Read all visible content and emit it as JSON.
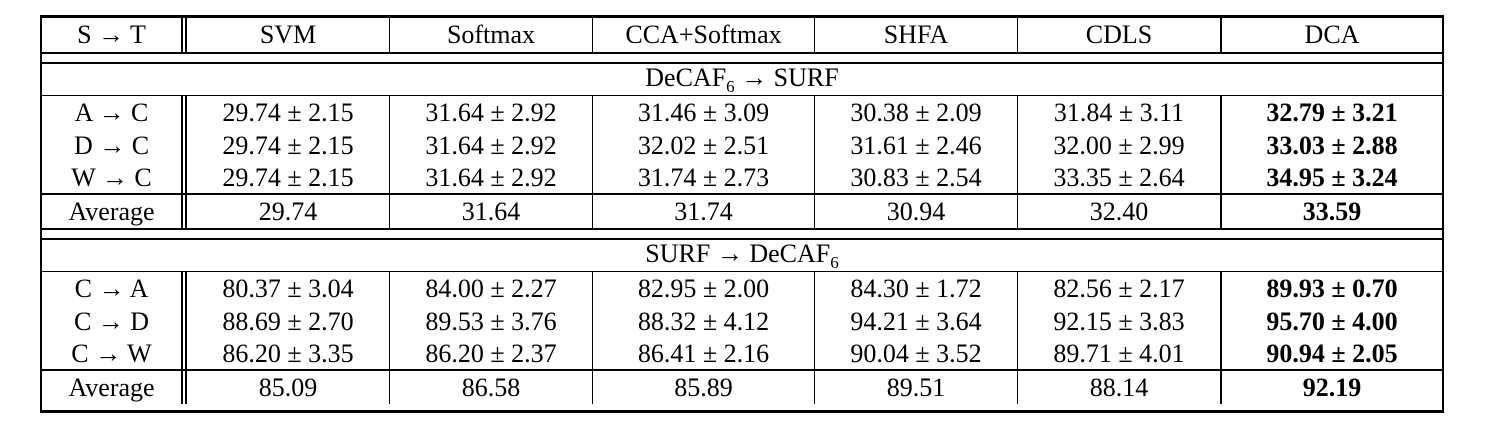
{
  "header": [
    "S → T",
    "SVM",
    "Softmax",
    "CCA+Softmax",
    "SHFA",
    "CDLS",
    "DCA"
  ],
  "sections": [
    {
      "title": "DeCAF",
      "title_sub": "6",
      "title_suffix": " → SURF",
      "rows": [
        [
          "A → C",
          "29.74 ± 2.15",
          "31.64 ± 2.92",
          "31.46 ± 3.09",
          "30.38 ± 2.09",
          "31.84 ± 3.11",
          "32.79 ± 3.21"
        ],
        [
          "D → C",
          "29.74 ± 2.15",
          "31.64 ± 2.92",
          "32.02 ± 2.51",
          "31.61 ± 2.46",
          "32.00 ± 2.99",
          "33.03 ± 2.88"
        ],
        [
          "W → C",
          "29.74 ± 2.15",
          "31.64 ± 2.92",
          "31.74 ± 2.73",
          "30.83 ± 2.54",
          "33.35 ± 2.64",
          "34.95 ± 3.24"
        ]
      ],
      "average": [
        "Average",
        "29.74",
        "31.64",
        "31.74",
        "30.94",
        "32.40",
        "33.59"
      ]
    },
    {
      "title": "SURF → DeCAF",
      "title_sub": "6",
      "title_suffix": "",
      "rows": [
        [
          "C → A",
          "80.37 ± 3.04",
          "84.00 ± 2.27",
          "82.95 ± 2.00",
          "84.30 ± 1.72",
          "82.56 ± 2.17",
          "89.93 ± 0.70"
        ],
        [
          "C → D",
          "88.69 ± 2.70",
          "89.53 ± 3.76",
          "88.32 ± 4.12",
          "94.21 ± 3.64",
          "92.15 ± 3.83",
          "95.70 ± 4.00"
        ],
        [
          "C → W",
          "86.20 ± 3.35",
          "86.20 ± 2.37",
          "86.41 ± 2.16",
          "90.04 ± 3.52",
          "89.71 ± 4.01",
          "90.94 ± 2.05"
        ]
      ],
      "average": [
        "Average",
        "85.09",
        "86.58",
        "85.89",
        "89.51",
        "88.14",
        "92.19"
      ]
    }
  ]
}
